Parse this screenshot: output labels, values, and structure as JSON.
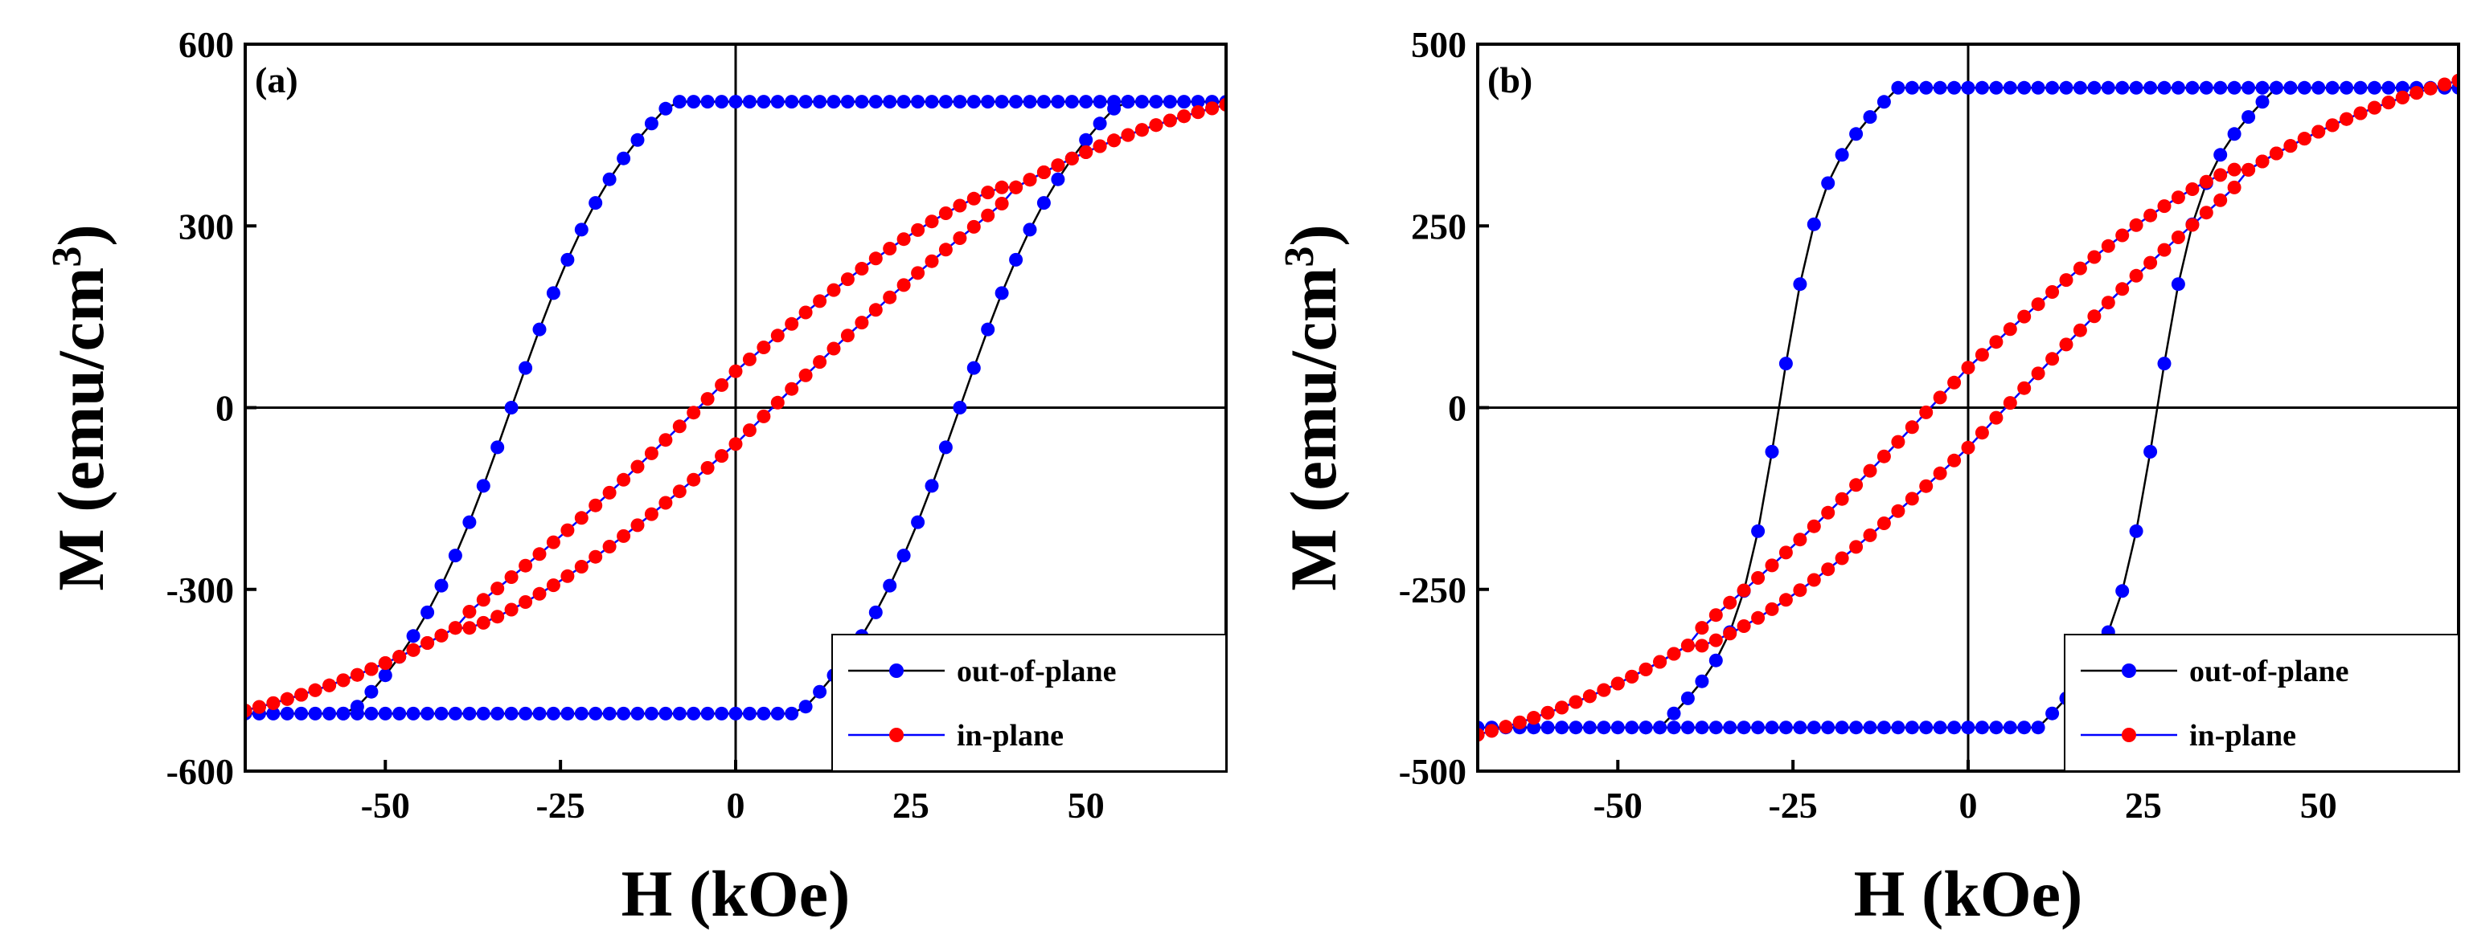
{
  "chart_data": [
    {
      "type": "line",
      "panel_label": "(a)",
      "xlabel": "H (kOe)",
      "ylabel": "M (emu/cm",
      "ylabel_sup": "3",
      "ylabel_close": ")",
      "xlim": [
        -70,
        70
      ],
      "ylim": [
        -600,
        600
      ],
      "xticks": [
        -50,
        -25,
        0,
        25,
        50
      ],
      "yticks": [
        600,
        300,
        0,
        -300,
        -600
      ],
      "legend_position": "bottom-right",
      "series": [
        {
          "name": "out-of-plane",
          "color": "#0000ff",
          "line_color": "#000000",
          "params": {
            "Ms": 505,
            "Hc": 32,
            "width": 14,
            "Hsat": 55,
            "power": 2.0
          }
        },
        {
          "name": "in-plane",
          "color": "#ff0000",
          "line_color": "#0000ff",
          "params": {
            "slope": 7.0,
            "Mr": 60,
            "Hclose": 40,
            "Hmax": 70,
            "Mmax": 500
          }
        }
      ]
    },
    {
      "type": "line",
      "panel_label": "(b)",
      "xlabel": "H (kOe)",
      "ylabel": "M (emu/cm",
      "ylabel_sup": "3",
      "ylabel_close": ")",
      "xlim": [
        -70,
        70
      ],
      "ylim": [
        -500,
        500
      ],
      "xticks": [
        -50,
        -25,
        0,
        25,
        50
      ],
      "yticks": [
        500,
        250,
        0,
        -250,
        -500
      ],
      "legend_position": "bottom-right",
      "series": [
        {
          "name": "out-of-plane",
          "color": "#0000ff",
          "line_color": "#000000",
          "params": {
            "Ms": 440,
            "Hc": 27,
            "width": 5.5,
            "Hsat": 44,
            "power": 2.5
          }
        },
        {
          "name": "in-plane",
          "color": "#ff0000",
          "line_color": "#0000ff",
          "params": {
            "slope": 6.3,
            "Mr": 55,
            "Hclose": 40,
            "Hmax": 70,
            "Mmax": 450
          }
        }
      ]
    }
  ]
}
